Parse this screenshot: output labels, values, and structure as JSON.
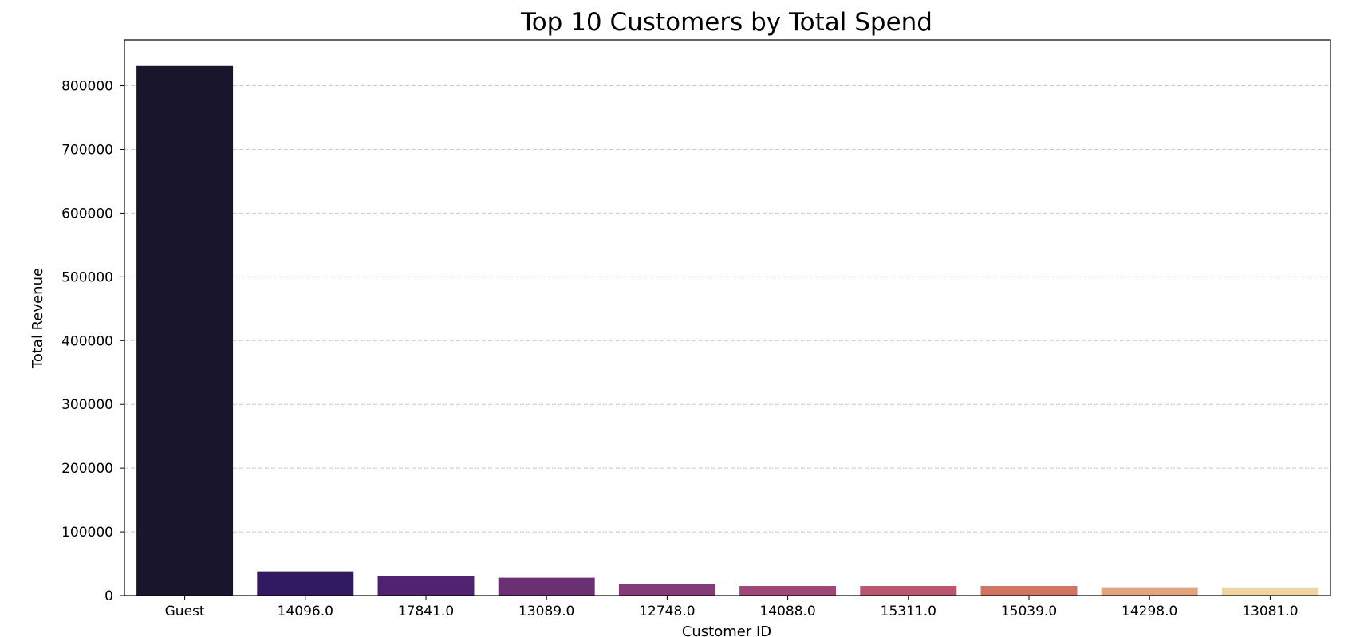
{
  "chart_data": {
    "type": "bar",
    "title": "Top 10 Customers by Total Spend",
    "xlabel": "Customer ID",
    "ylabel": "Total Revenue",
    "categories": [
      "Guest",
      "14096.0",
      "17841.0",
      "13089.0",
      "12748.0",
      "14088.0",
      "15311.0",
      "15039.0",
      "14298.0",
      "13081.0"
    ],
    "values": [
      831000,
      38000,
      31000,
      28000,
      18500,
      15000,
      15000,
      15000,
      13000,
      12800
    ],
    "ylim": [
      0,
      872000
    ],
    "yticks": [
      0,
      100000,
      200000,
      300000,
      400000,
      500000,
      600000,
      700000,
      800000
    ],
    "ytick_labels": [
      "0",
      "100000",
      "200000",
      "300000",
      "400000",
      "500000",
      "600000",
      "700000",
      "800000"
    ],
    "grid": "y dashed",
    "legend": "none",
    "colors": [
      "#18152c",
      "#321a60",
      "#4f2370",
      "#6b2f74",
      "#853b76",
      "#a04778",
      "#bb5670",
      "#d17462",
      "#e2a47e",
      "#eed4a1"
    ]
  }
}
